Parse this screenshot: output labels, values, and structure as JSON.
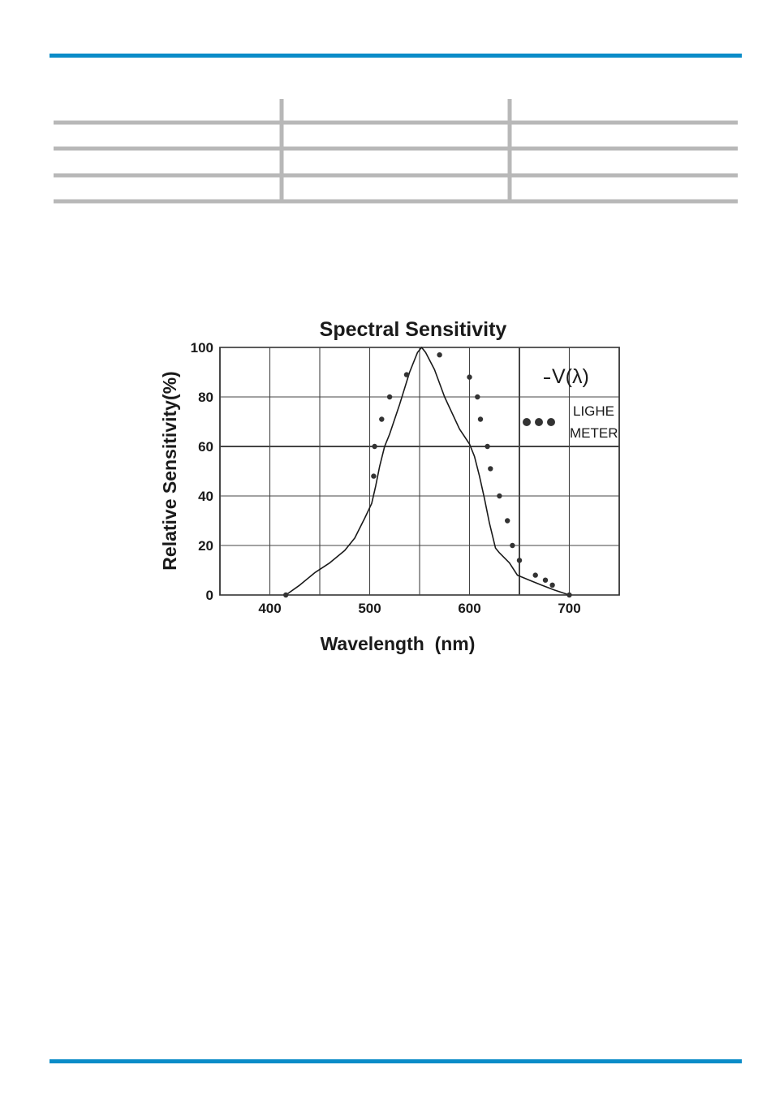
{
  "theme": {
    "rule_color": "#0a8cc8",
    "table_line_color": "#b8b8b8",
    "ink": "#1a1a1a",
    "grid_color": "#444444"
  },
  "table": {
    "rows": 4,
    "columns": 3
  },
  "chart_data": {
    "type": "line",
    "title": "Spectral Sensitivity",
    "xlabel": "Wavelength  (nm)",
    "ylabel": "Relative Sensitivity(%)",
    "xlim": [
      350,
      750
    ],
    "ylim": [
      0,
      100
    ],
    "x_ticks": [
      400,
      500,
      600,
      700
    ],
    "y_ticks": [
      0,
      20,
      40,
      60,
      80,
      100
    ],
    "grid_x": [
      400,
      450,
      500,
      550,
      600,
      650,
      700
    ],
    "grid": true,
    "legend_position": "right",
    "series": [
      {
        "name": "V(λ)",
        "style": "line",
        "x": [
          416,
          430,
          445,
          460,
          475,
          485,
          495,
          502,
          506,
          510,
          515,
          520,
          530,
          540,
          548,
          552,
          556,
          565,
          575,
          590,
          600,
          605,
          610,
          615,
          620,
          626,
          630,
          640,
          648,
          660,
          672,
          685,
          700
        ],
        "y": [
          0,
          4,
          9,
          13,
          18,
          23,
          31,
          37,
          44,
          52,
          60,
          65,
          77,
          90,
          98,
          100,
          98,
          91,
          80,
          67,
          61,
          56,
          48,
          39,
          29,
          19,
          17,
          13,
          8,
          6,
          4,
          2,
          0
        ]
      },
      {
        "name": "LIGHE METER",
        "style": "dots",
        "x": [
          416,
          504,
          505,
          512,
          520,
          537,
          570,
          600,
          608,
          611,
          618,
          621,
          630,
          638,
          643,
          650,
          666,
          676,
          683,
          700
        ],
        "y": [
          0,
          48,
          60,
          71,
          80,
          89,
          97,
          88,
          80,
          71,
          60,
          51,
          40,
          30,
          20,
          14,
          8,
          6,
          4,
          0
        ]
      }
    ],
    "legend": {
      "line_label": "V(λ)",
      "dots_label_line1": "LIGHE",
      "dots_label_line2": "METER"
    }
  }
}
